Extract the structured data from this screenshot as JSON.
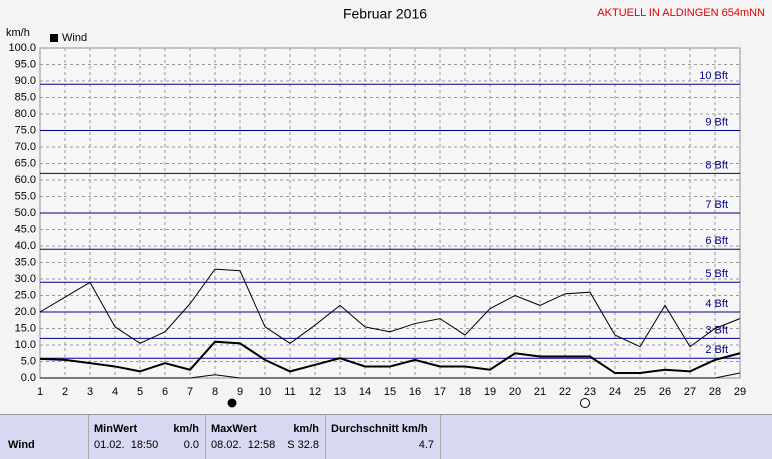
{
  "chart_data": {
    "type": "line",
    "title": "Februar 2016",
    "annotation": "AKTUELL IN ALDINGEN 654mNN",
    "y_label": "km/h",
    "x": [
      1,
      2,
      3,
      4,
      5,
      6,
      7,
      8,
      9,
      10,
      11,
      12,
      13,
      14,
      15,
      16,
      17,
      18,
      19,
      20,
      21,
      22,
      23,
      24,
      25,
      26,
      27,
      28,
      29
    ],
    "xlim": [
      1,
      29
    ],
    "xticks": [
      1,
      2,
      3,
      4,
      5,
      6,
      7,
      8,
      9,
      10,
      11,
      12,
      13,
      14,
      15,
      16,
      17,
      18,
      19,
      20,
      21,
      22,
      23,
      24,
      25,
      26,
      27,
      28,
      29
    ],
    "ylim": [
      0,
      100
    ],
    "yticks": [
      {
        "value": 0,
        "label": "0.0"
      },
      {
        "value": 5,
        "label": "5.0"
      },
      {
        "value": 10,
        "label": "10.0"
      },
      {
        "value": 15,
        "label": "15.0"
      },
      {
        "value": 20,
        "label": "20.0"
      },
      {
        "value": 25,
        "label": "25.0"
      },
      {
        "value": 30,
        "label": "30.0"
      },
      {
        "value": 35,
        "label": "35.0"
      },
      {
        "value": 40,
        "label": "40.0"
      },
      {
        "value": 45,
        "label": "45.0"
      },
      {
        "value": 50,
        "label": "50.0"
      },
      {
        "value": 55,
        "label": "55.0"
      },
      {
        "value": 60,
        "label": "60.0"
      },
      {
        "value": 65,
        "label": "65.0"
      },
      {
        "value": 70,
        "label": "70.0"
      },
      {
        "value": 75,
        "label": "75.0"
      },
      {
        "value": 80,
        "label": "80.0"
      },
      {
        "value": 85,
        "label": "85.0"
      },
      {
        "value": 90,
        "label": "90.0"
      },
      {
        "value": 95,
        "label": "95.0"
      },
      {
        "value": 100,
        "label": "100.0"
      }
    ],
    "grid": true,
    "beaufort": [
      {
        "value": 6,
        "label": "2 Bft"
      },
      {
        "value": 12,
        "label": "3 Bft"
      },
      {
        "value": 20,
        "label": "4 Bft"
      },
      {
        "value": 29,
        "label": "5 Bft"
      },
      {
        "value": 39,
        "label": "6 Bft"
      },
      {
        "value": 50,
        "label": "7 Bft"
      },
      {
        "value": 62,
        "label": "8 Bft"
      },
      {
        "value": 75,
        "label": "9 Bft"
      },
      {
        "value": 89,
        "label": "10 Bft"
      }
    ],
    "series": [
      {
        "name": "Wind",
        "color": "#000000",
        "width": 2,
        "values": [
          5.8,
          5.5,
          4.5,
          3.5,
          2,
          4.5,
          2.5,
          11,
          10.5,
          5.5,
          2,
          4,
          6,
          3.5,
          3.5,
          5.5,
          3.5,
          3.5,
          2.5,
          7.5,
          6.5,
          6.5,
          6.5,
          1.5,
          1.5,
          2.5,
          2,
          5.5,
          7.5
        ]
      },
      {
        "color": "#000000",
        "width": 1,
        "values": [
          20,
          24.5,
          29,
          15.5,
          10.5,
          14,
          22.5,
          33,
          32.5,
          15.5,
          10.5,
          16,
          22,
          15.5,
          14,
          16.5,
          18,
          13,
          21,
          25,
          22,
          25.5,
          26,
          13,
          9.5,
          22,
          9.5,
          15,
          18
        ]
      },
      {
        "color": "#000000",
        "width": 1,
        "values": [
          0,
          0,
          0,
          0,
          0,
          0,
          0,
          1,
          0,
          0,
          0,
          0,
          0,
          0,
          0,
          0,
          0,
          0,
          0,
          0,
          0,
          0,
          0,
          0,
          0,
          0,
          0,
          0,
          1.5
        ]
      }
    ]
  },
  "summary": {
    "label": "Wind",
    "min": {
      "header": "MinWert",
      "unit": "km/h",
      "date": "01.02.  18:50",
      "value": "0.0"
    },
    "max": {
      "header": "MaxWert",
      "unit": "km/h",
      "date": "08.02.  12:58",
      "value": "S 32.8"
    },
    "avg": {
      "header": "Durchschnitt km/h",
      "value": "4.7"
    }
  }
}
